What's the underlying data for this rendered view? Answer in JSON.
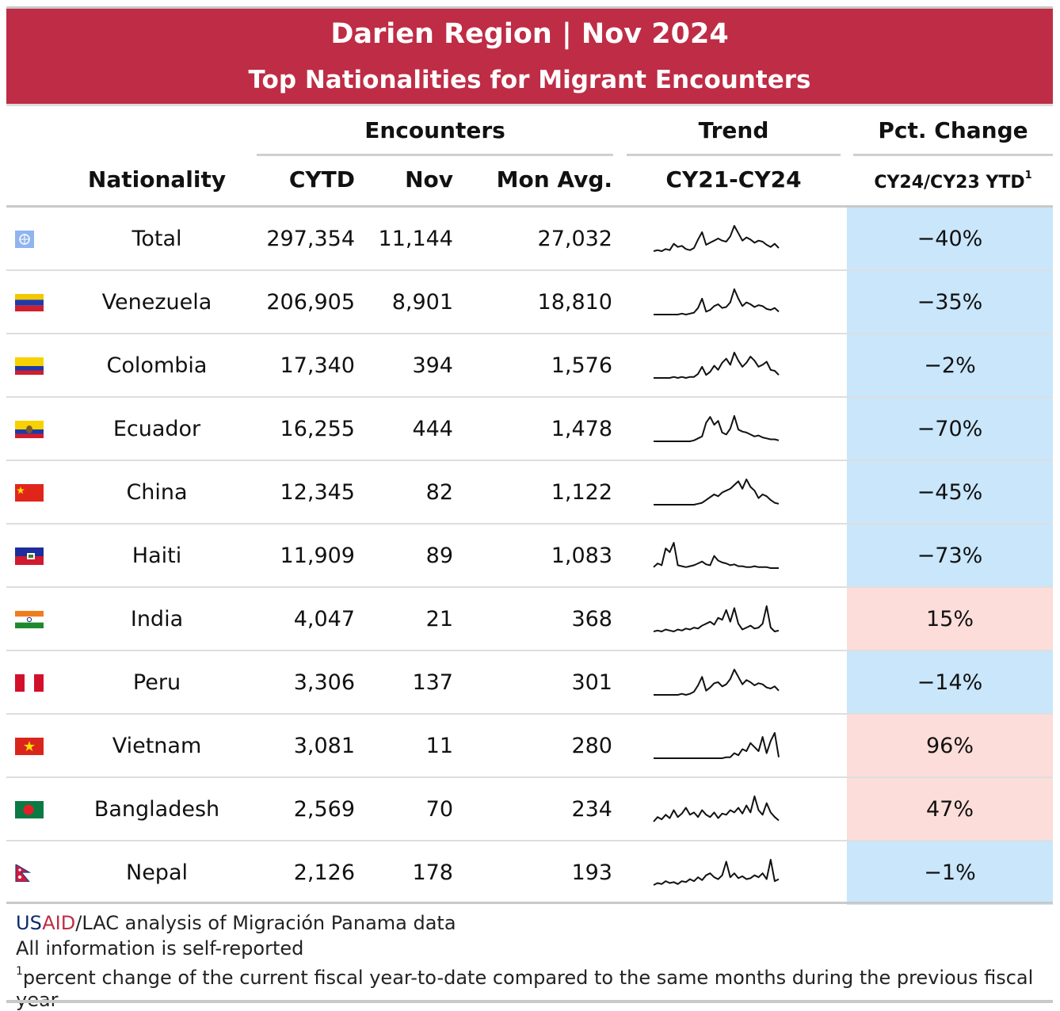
{
  "header": {
    "title": "Darien Region | Nov 2024",
    "subtitle": "Top Nationalities for Migrant Encounters"
  },
  "groups": {
    "encounters": "Encounters",
    "trend": "Trend",
    "pct_change": "Pct. Change"
  },
  "columns": {
    "nationality": "Nationality",
    "cytd": "CYTD",
    "nov": "Nov",
    "mon_avg": "Mon Avg.",
    "trend_range": "CY21-CY24",
    "pct": "CY24/CY23 YTD",
    "pct_note_marker": "1"
  },
  "colors": {
    "header_bg": "#bf2c45",
    "decrease_bg": "#c9e6fb",
    "increase_bg": "#fcddda"
  },
  "rows": [
    {
      "flag": "un-flag-icon",
      "nationality": "Total",
      "cytd": "297,354",
      "nov": "11,144",
      "mon_avg": "27,032",
      "pct": "−40%",
      "direction": "decrease",
      "trend": [
        2,
        3,
        2,
        4,
        3,
        9,
        6,
        7,
        4,
        3,
        5,
        13,
        20,
        8,
        10,
        12,
        14,
        12,
        11,
        16,
        26,
        19,
        12,
        15,
        13,
        10,
        12,
        11,
        8,
        6,
        9,
        5
      ]
    },
    {
      "flag": "venezuela-flag-icon",
      "nationality": "Venezuela",
      "cytd": "206,905",
      "nov": "8,901",
      "mon_avg": "18,810",
      "pct": "−35%",
      "direction": "decrease",
      "trend": [
        1,
        1,
        1,
        1,
        1,
        1,
        1,
        2,
        1,
        2,
        3,
        8,
        18,
        4,
        6,
        10,
        12,
        8,
        9,
        14,
        28,
        18,
        10,
        14,
        12,
        9,
        11,
        10,
        7,
        6,
        8,
        4
      ]
    },
    {
      "flag": "colombia-flag-icon",
      "nationality": "Colombia",
      "cytd": "17,340",
      "nov": "394",
      "mon_avg": "1,576",
      "pct": "−2%",
      "direction": "decrease",
      "trend": [
        1,
        1,
        1,
        1,
        1,
        2,
        1,
        2,
        1,
        2,
        2,
        5,
        12,
        4,
        7,
        13,
        9,
        16,
        20,
        14,
        26,
        18,
        12,
        16,
        22,
        18,
        12,
        14,
        17,
        9,
        8,
        4
      ]
    },
    {
      "flag": "ecuador-flag-icon",
      "nationality": "Ecuador",
      "cytd": "16,255",
      "nov": "444",
      "mon_avg": "1,478",
      "pct": "−70%",
      "direction": "decrease",
      "trend": [
        1,
        1,
        1,
        1,
        1,
        1,
        1,
        1,
        1,
        1,
        2,
        4,
        6,
        20,
        26,
        18,
        22,
        10,
        8,
        14,
        27,
        13,
        11,
        10,
        8,
        6,
        7,
        5,
        4,
        3,
        3,
        2
      ]
    },
    {
      "flag": "china-flag-icon",
      "nationality": "China",
      "cytd": "12,345",
      "nov": "82",
      "mon_avg": "1,122",
      "pct": "−45%",
      "direction": "decrease",
      "trend": [
        1,
        1,
        1,
        1,
        1,
        1,
        1,
        1,
        1,
        1,
        1,
        2,
        3,
        6,
        9,
        12,
        10,
        14,
        16,
        18,
        22,
        26,
        18,
        28,
        20,
        16,
        8,
        12,
        10,
        6,
        3,
        2
      ]
    },
    {
      "flag": "haiti-flag-icon",
      "nationality": "Haiti",
      "cytd": "11,909",
      "nov": "89",
      "mon_avg": "1,083",
      "pct": "−73%",
      "direction": "decrease",
      "trend": [
        2,
        6,
        4,
        22,
        18,
        28,
        4,
        3,
        2,
        3,
        4,
        6,
        8,
        5,
        4,
        14,
        9,
        7,
        6,
        4,
        5,
        3,
        3,
        2,
        2,
        3,
        2,
        2,
        2,
        1,
        1,
        1
      ]
    },
    {
      "flag": "india-flag-icon",
      "nationality": "India",
      "cytd": "4,047",
      "nov": "21",
      "mon_avg": "368",
      "pct": "15%",
      "direction": "increase",
      "trend": [
        2,
        3,
        2,
        4,
        3,
        2,
        4,
        3,
        5,
        4,
        6,
        5,
        8,
        10,
        12,
        9,
        16,
        14,
        24,
        12,
        26,
        10,
        4,
        6,
        8,
        5,
        6,
        10,
        28,
        6,
        2,
        3
      ]
    },
    {
      "flag": "peru-flag-icon",
      "nationality": "Peru",
      "cytd": "3,306",
      "nov": "137",
      "mon_avg": "301",
      "pct": "−14%",
      "direction": "decrease",
      "trend": [
        1,
        1,
        1,
        1,
        1,
        1,
        1,
        2,
        1,
        2,
        4,
        10,
        18,
        5,
        8,
        12,
        13,
        9,
        11,
        16,
        25,
        18,
        11,
        15,
        13,
        10,
        12,
        11,
        8,
        7,
        9,
        5
      ]
    },
    {
      "flag": "vietnam-flag-icon",
      "nationality": "Vietnam",
      "cytd": "3,081",
      "nov": "11",
      "mon_avg": "280",
      "pct": "96%",
      "direction": "increase",
      "trend": [
        1,
        1,
        1,
        1,
        1,
        1,
        1,
        1,
        1,
        1,
        1,
        1,
        1,
        1,
        1,
        1,
        1,
        1,
        2,
        2,
        6,
        4,
        10,
        8,
        16,
        12,
        8,
        22,
        6,
        18,
        26,
        2
      ]
    },
    {
      "flag": "bangladesh-flag-icon",
      "nationality": "Bangladesh",
      "cytd": "2,569",
      "nov": "70",
      "mon_avg": "234",
      "pct": "47%",
      "direction": "increase",
      "trend": [
        2,
        6,
        4,
        8,
        5,
        12,
        6,
        9,
        14,
        8,
        10,
        6,
        12,
        8,
        6,
        10,
        5,
        9,
        8,
        12,
        10,
        14,
        9,
        16,
        10,
        24,
        12,
        8,
        18,
        10,
        6,
        3
      ]
    },
    {
      "flag": "nepal-flag-icon",
      "nationality": "Nepal",
      "cytd": "2,126",
      "nov": "178",
      "mon_avg": "193",
      "pct": "−1%",
      "direction": "decrease",
      "trend": [
        2,
        4,
        3,
        6,
        4,
        5,
        3,
        6,
        5,
        8,
        6,
        10,
        7,
        12,
        14,
        10,
        8,
        12,
        26,
        10,
        14,
        9,
        11,
        8,
        9,
        12,
        10,
        14,
        8,
        28,
        6,
        8
      ]
    }
  ],
  "footer": {
    "source_us": "US",
    "source_aid": "AID",
    "source_rest": "/LAC analysis of Migración Panama data",
    "line2": "All information is self-reported",
    "note_marker": "1",
    "note": "percent change of the current fiscal year-to-date compared to the same months during the previous fiscal year"
  }
}
